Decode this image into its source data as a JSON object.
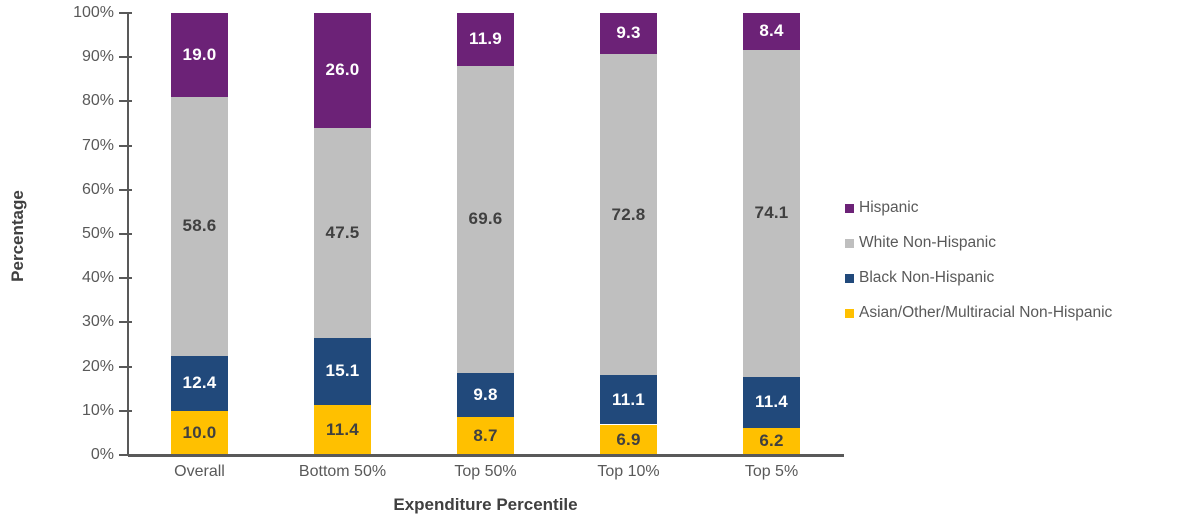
{
  "chart_data": {
    "type": "bar",
    "subtype": "stacked-100",
    "categories": [
      "Overall",
      "Bottom 50%",
      "Top 50%",
      "Top 10%",
      "Top 5%"
    ],
    "series": [
      {
        "name": "Asian/Other/Multiracial Non-Hispanic",
        "color": "#FFC000",
        "label_color": "#404040",
        "values": [
          10.0,
          11.4,
          8.7,
          6.9,
          6.2
        ],
        "labels": [
          "10.0",
          "11.4",
          "8.7",
          "6.9",
          "6.2"
        ]
      },
      {
        "name": "Black Non-Hispanic",
        "color": "#21497B",
        "label_color": "#FFFFFF",
        "values": [
          12.4,
          15.1,
          9.8,
          11.1,
          11.4
        ],
        "labels": [
          "12.4",
          "15.1",
          "9.8",
          "11.1",
          "11.4"
        ]
      },
      {
        "name": "White Non-Hispanic",
        "color": "#BFBFBF",
        "label_color": "#404040",
        "values": [
          58.6,
          47.5,
          69.6,
          72.8,
          74.1
        ],
        "labels": [
          "58.6",
          "47.5",
          "69.6",
          "72.8",
          "74.1"
        ]
      },
      {
        "name": "Hispanic",
        "color": "#6C2277",
        "label_color": "#FFFFFF",
        "values": [
          19.0,
          26.0,
          11.9,
          9.3,
          8.4
        ],
        "labels": [
          "19.0",
          "26.0",
          "11.9",
          "9.3",
          "8.4"
        ]
      }
    ],
    "legend_order": [
      "Hispanic",
      "White Non-Hispanic",
      "Black Non-Hispanic",
      "Asian/Other/Multiracial Non-Hispanic"
    ],
    "legend_position": "right",
    "xlabel": "Expenditure Percentile",
    "ylabel": "Percentage",
    "ylim": [
      0,
      100
    ],
    "ytick_step": 10,
    "ytick_labels": [
      "0%",
      "10%",
      "20%",
      "30%",
      "40%",
      "50%",
      "60%",
      "70%",
      "80%",
      "90%",
      "100%"
    ],
    "grid": false,
    "axis_color": "#595959",
    "tick_text_color": "#595959",
    "title_text_color": "#404040"
  }
}
